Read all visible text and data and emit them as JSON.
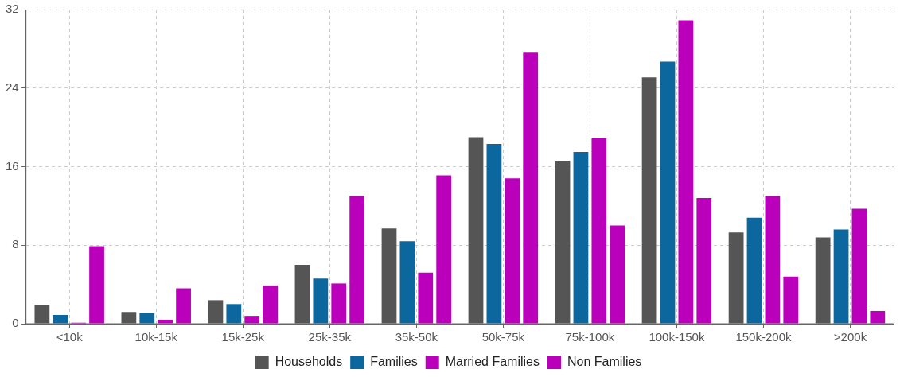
{
  "chart_data": {
    "type": "bar",
    "categories": [
      "<10k",
      "10k-15k",
      "15k-25k",
      "25k-35k",
      "35k-50k",
      "50k-75k",
      "75k-100k",
      "100k-150k",
      "150k-200k",
      ">200k"
    ],
    "series": [
      {
        "name": "Households",
        "color": "#555555",
        "values": [
          1.9,
          1.2,
          2.4,
          6.0,
          9.7,
          19.0,
          16.6,
          25.1,
          9.3,
          8.8
        ]
      },
      {
        "name": "Families",
        "color": "#0b679e",
        "values": [
          0.9,
          1.1,
          2.0,
          4.6,
          8.4,
          18.3,
          17.5,
          26.7,
          10.8,
          9.6
        ]
      },
      {
        "name": "Married Families",
        "color": "#bb00bb",
        "values": [
          0.1,
          0.4,
          0.8,
          4.1,
          5.2,
          14.8,
          18.9,
          30.9,
          13.0,
          11.7
        ]
      },
      {
        "name": "Non Families",
        "color": "#bb00bb",
        "values": [
          7.9,
          3.6,
          3.9,
          13.0,
          15.1,
          27.6,
          10.0,
          12.8,
          4.8,
          1.3
        ]
      }
    ],
    "ylim": [
      0,
      32
    ],
    "yticks": [
      0,
      8,
      16,
      24,
      32
    ],
    "grid": true,
    "legend": "bottom"
  }
}
